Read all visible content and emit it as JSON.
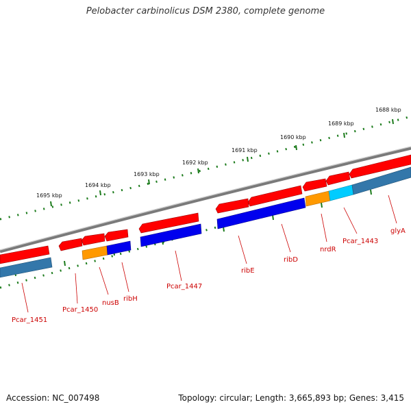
{
  "title": "Pelobacter carbinolicus DSM 2380, complete genome",
  "footer": {
    "accession": "Accession: NC_007498",
    "topology": "Topology: circular; Length: 3,665,893 bp; Genes: 3,415"
  },
  "colors": {
    "backbone": "#7a7a7a",
    "tick": "#1a7a1a",
    "gene_label": "#cc0000",
    "cds_red": "#ff0000",
    "cds_blue": "#0000ee",
    "cds_orange": "#ff9900",
    "cds_cyan": "#00ccff",
    "cds_steel": "#3377aa"
  },
  "kbp_ticks": [
    {
      "label": "1688 kbp"
    },
    {
      "label": "1689 kbp"
    },
    {
      "label": "1690 kbp"
    },
    {
      "label": "1691 kbp"
    },
    {
      "label": "1692 kbp"
    },
    {
      "label": "1693 kbp"
    },
    {
      "label": "1694 kbp"
    },
    {
      "label": "1695 kbp"
    }
  ],
  "gene_labels": [
    {
      "name": "Pcar_1451"
    },
    {
      "name": "Pcar_1450"
    },
    {
      "name": "nusB"
    },
    {
      "name": "ribH"
    },
    {
      "name": "Pcar_1447"
    },
    {
      "name": "ribE"
    },
    {
      "name": "ribD"
    },
    {
      "name": "nrdR"
    },
    {
      "name": "Pcar_1443"
    },
    {
      "name": "glyA"
    }
  ]
}
